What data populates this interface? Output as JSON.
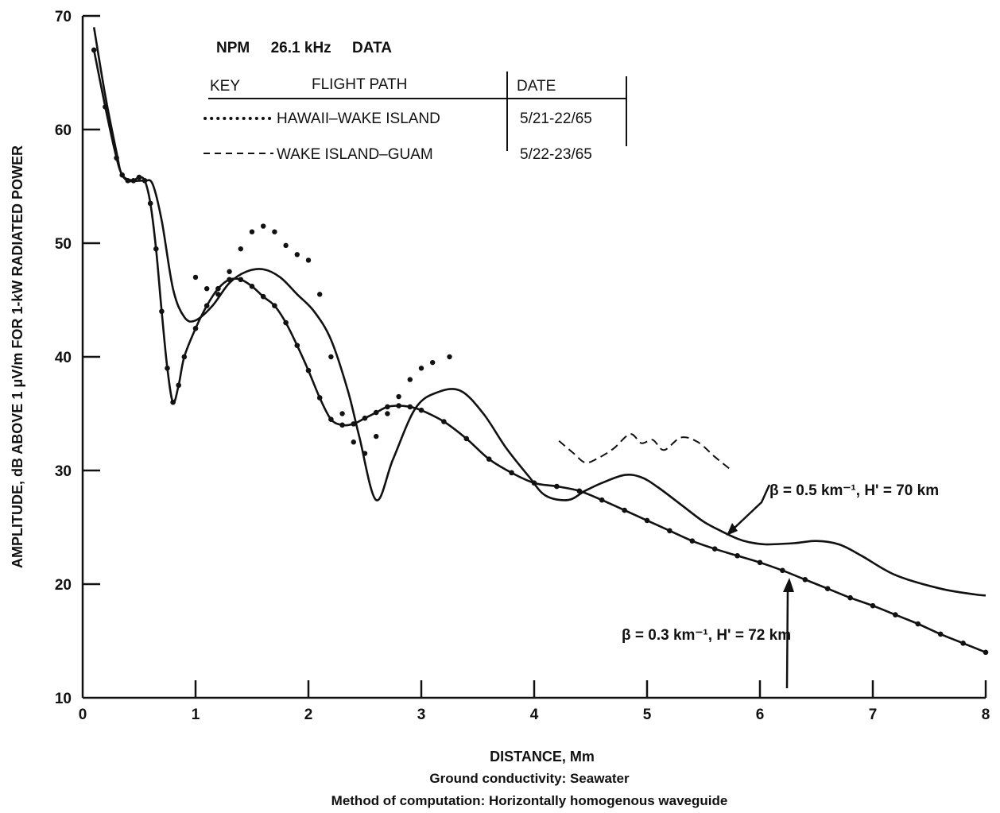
{
  "chart_data": {
    "type": "line",
    "ylabel": "AMPLITUDE, dB ABOVE 1 μV/m FOR 1-kW RADIATED POWER",
    "xlabel": "DISTANCE, Mm",
    "notes": [
      "Ground conductivity:  Seawater",
      "Method of computation:  Horizontally homogenous waveguide"
    ],
    "xlim": [
      0,
      8
    ],
    "ylim": [
      10,
      70
    ],
    "x_ticks": [
      "0",
      "1",
      "2",
      "3",
      "4",
      "5",
      "6",
      "7",
      "8"
    ],
    "y_ticks": [
      "10",
      "20",
      "30",
      "40",
      "50",
      "60",
      "70"
    ],
    "grid": false,
    "legend": {
      "title": "NPM     26.1 kHz     DATA",
      "col_key": "KEY",
      "col_path": "FLIGHT PATH",
      "col_date": "DATE",
      "rows": [
        {
          "key": "dotted",
          "path": "HAWAII–WAKE ISLAND",
          "date": "5/21-22/65"
        },
        {
          "key": "dashed",
          "path": "WAKE ISLAND–GUAM",
          "date": "5/22-23/65"
        }
      ]
    },
    "annotations": {
      "beta05": "β = 0.5 km⁻¹, H' = 70 km",
      "beta03": "β = 0.3 km⁻¹, H' = 72 km"
    },
    "series": [
      {
        "name": "β = 0.5 km⁻¹, H' = 70 km",
        "style": "solid",
        "x": [
          0.1,
          0.2,
          0.3,
          0.35,
          0.45,
          0.55,
          0.62,
          0.7,
          0.8,
          0.9,
          1.0,
          1.15,
          1.3,
          1.45,
          1.6,
          1.75,
          1.9,
          2.05,
          2.2,
          2.35,
          2.45,
          2.6,
          2.75,
          2.95,
          3.15,
          3.35,
          3.55,
          3.75,
          3.95,
          4.1,
          4.3,
          4.45,
          4.6,
          4.8,
          4.95,
          5.1,
          5.3,
          5.5,
          5.65,
          5.8,
          5.9,
          6.05,
          6.3,
          6.5,
          6.7,
          6.9,
          7.2,
          7.6,
          7.9,
          8.0
        ],
        "y": [
          69,
          63,
          58,
          56,
          55.5,
          55.5,
          55.2,
          52,
          46,
          43.5,
          43.2,
          44.5,
          46.5,
          47.5,
          47.7,
          47,
          45.5,
          44,
          41.5,
          37,
          33,
          27.4,
          31,
          35.5,
          36.9,
          37,
          35,
          32,
          29.5,
          27.8,
          27.4,
          28.2,
          28.9,
          29.6,
          29.4,
          28.5,
          27,
          25.5,
          24.7,
          24,
          23.7,
          23.5,
          23.6,
          23.8,
          23.5,
          22.5,
          20.8,
          19.6,
          19.1,
          19
        ]
      },
      {
        "name": "β = 0.3 km⁻¹, H' = 72 km",
        "style": "solid-dots",
        "x": [
          0.1,
          0.2,
          0.3,
          0.35,
          0.4,
          0.45,
          0.5,
          0.55,
          0.6,
          0.65,
          0.7,
          0.75,
          0.8,
          0.85,
          0.9,
          1.0,
          1.1,
          1.2,
          1.3,
          1.4,
          1.5,
          1.6,
          1.7,
          1.8,
          1.9,
          2.0,
          2.1,
          2.2,
          2.3,
          2.4,
          2.5,
          2.6,
          2.7,
          2.8,
          2.9,
          3.0,
          3.2,
          3.4,
          3.6,
          3.8,
          4.0,
          4.2,
          4.4,
          4.6,
          4.8,
          5.0,
          5.2,
          5.4,
          5.6,
          5.8,
          6.0,
          6.2,
          6.4,
          6.6,
          6.8,
          7.0,
          7.2,
          7.4,
          7.6,
          7.8,
          8.0
        ],
        "y": [
          67,
          62,
          57.5,
          56,
          55.5,
          55.5,
          55.8,
          55.5,
          53.5,
          49.5,
          44,
          39,
          36,
          37.5,
          40,
          42.5,
          44.5,
          46,
          46.8,
          46.8,
          46.2,
          45.3,
          44.5,
          43,
          41,
          38.8,
          36.4,
          34.5,
          34,
          34.1,
          34.6,
          35.1,
          35.6,
          35.7,
          35.6,
          35.3,
          34.3,
          32.8,
          31,
          29.8,
          28.9,
          28.6,
          28.2,
          27.4,
          26.5,
          25.6,
          24.7,
          23.8,
          23.1,
          22.5,
          21.9,
          21.2,
          20.4,
          19.6,
          18.8,
          18.1,
          17.3,
          16.5,
          15.6,
          14.8,
          14
        ]
      },
      {
        "name": "HAWAII–WAKE ISLAND",
        "style": "dotted",
        "x": [
          1.0,
          1.1,
          1.2,
          1.3,
          1.4,
          1.5,
          1.6,
          1.7,
          1.8,
          1.9,
          2.0,
          2.1,
          2.2,
          2.3,
          2.4,
          2.5,
          2.6,
          2.7,
          2.8,
          2.9,
          3.0,
          3.1,
          3.25
        ],
        "y": [
          47,
          46,
          45.5,
          47.5,
          49.5,
          51,
          51.5,
          51,
          49.8,
          49,
          48.5,
          45.5,
          40,
          35,
          32.5,
          31.5,
          33,
          35,
          36.5,
          38,
          39,
          39.5,
          40
        ]
      },
      {
        "name": "WAKE ISLAND–GUAM",
        "style": "dashed",
        "x": [
          4.22,
          4.35,
          4.45,
          4.55,
          4.7,
          4.85,
          4.95,
          5.05,
          5.15,
          5.3,
          5.45,
          5.6,
          5.75
        ],
        "y": [
          32.6,
          31.5,
          30.7,
          31,
          31.9,
          33.2,
          32.4,
          32.7,
          31.8,
          32.9,
          32.5,
          31.2,
          30
        ]
      }
    ]
  }
}
